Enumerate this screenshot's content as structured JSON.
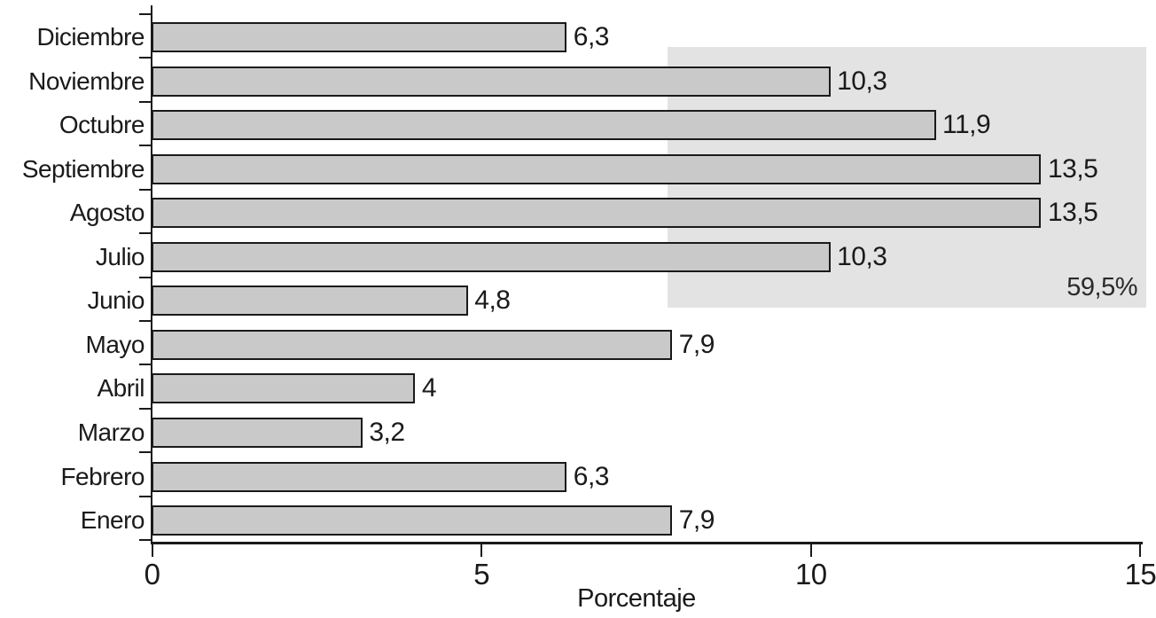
{
  "chart_data": {
    "type": "bar",
    "orientation": "horizontal",
    "categories": [
      "Diciembre",
      "Noviembre",
      "Octubre",
      "Septiembre",
      "Agosto",
      "Julio",
      "Junio",
      "Mayo",
      "Abril",
      "Marzo",
      "Febrero",
      "Enero"
    ],
    "values": [
      6.3,
      10.3,
      11.9,
      13.5,
      13.5,
      10.3,
      4.8,
      7.9,
      4,
      3.2,
      6.3,
      7.9
    ],
    "value_labels": [
      "6,3",
      "10,3",
      "11,9",
      "13,5",
      "13,5",
      "10,3",
      "4,8",
      "7,9",
      "4",
      "3,2",
      "6,3",
      "7,9"
    ],
    "title": "",
    "xlabel": "Porcentaje",
    "ylabel": "",
    "xlim": [
      0,
      15
    ],
    "xticks": [
      0,
      5,
      10,
      15
    ],
    "xtick_labels": [
      "0",
      "5",
      "10",
      "15"
    ],
    "grid": false,
    "legend": false,
    "annotation": {
      "label": "59,5%",
      "value": 59.5,
      "x_range": [
        7.8,
        15
      ],
      "row_from": "Noviembre",
      "row_to": "Junio",
      "sum_of_categories": [
        "Noviembre",
        "Octubre",
        "Septiembre",
        "Agosto",
        "Julio"
      ]
    },
    "colors": {
      "bar_fill": "#c9c9c9",
      "bar_border": "#1a1a1a",
      "highlight_fill": "#e3e3e3",
      "text": "#1a1a1a"
    }
  }
}
